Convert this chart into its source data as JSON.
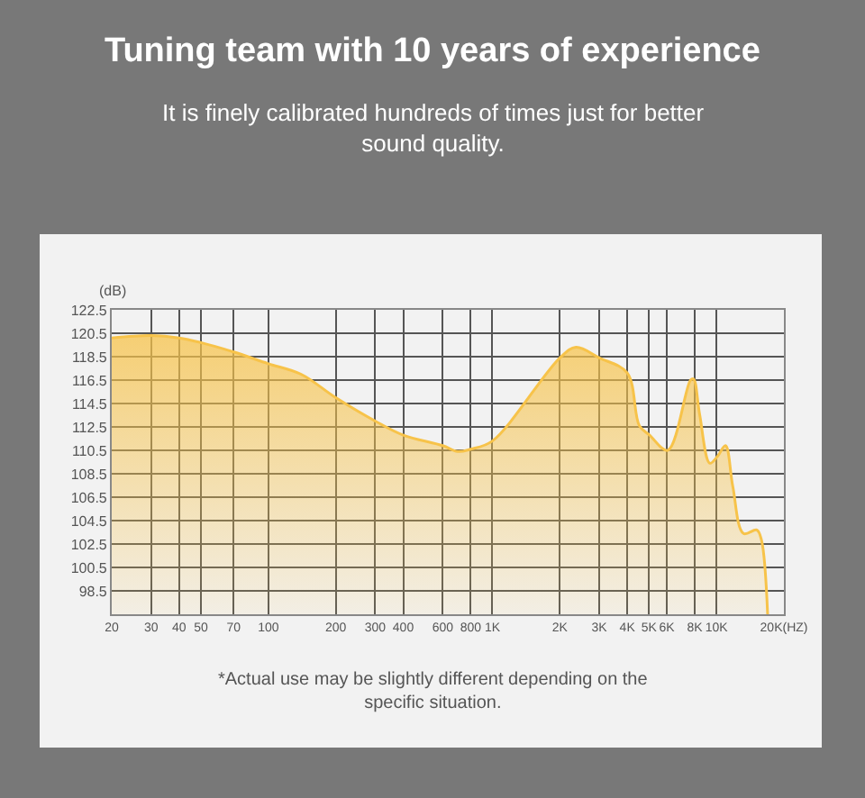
{
  "chart_data": {
    "type": "area",
    "title": "Tuning team with 10 years of experience",
    "subtitle": "It is finely calibrated hundreds of times just for better sound quality.",
    "ylabel": "(dB)",
    "annotations": [
      "*Actual use may be slightly different depending on the specific situation."
    ],
    "log": "x",
    "grid": true,
    "xlim": [
      20,
      20000
    ],
    "xticks": [
      20,
      30,
      40,
      50,
      70,
      100,
      200,
      {
        "value": 300,
        "label": "300"
      },
      400,
      600,
      800,
      {
        "value": 1000,
        "label": "1K"
      },
      {
        "value": 2000,
        "label": "2K"
      },
      {
        "value": 3000,
        "label": "3K"
      },
      {
        "value": 4000,
        "label": "4K"
      },
      {
        "value": 5000,
        "label": "5K"
      },
      {
        "value": 6000,
        "label": "6K"
      },
      {
        "value": 8000,
        "label": "8K"
      },
      {
        "value": 10000,
        "label": "10K"
      },
      {
        "value": 20000,
        "label": "20K(HZ)"
      }
    ],
    "ylim": [
      96.5,
      122.5
    ],
    "yticks": [
      98.5,
      100.5,
      102.5,
      104.5,
      106.5,
      108.5,
      110.5,
      112.5,
      114.5,
      116.5,
      118.5,
      120.5,
      122.5
    ],
    "series": [
      {
        "color": "#f7c34a",
        "x": [
          20,
          30,
          40,
          50,
          70,
          100,
          140,
          200,
          300,
          400,
          600,
          700,
          800,
          1000,
          2000,
          2360,
          3000,
          4000,
          4530,
          5030,
          6060,
          7660,
          7900,
          8410,
          9340,
          10120,
          10970,
          11830,
          13200,
          15140,
          15900,
          16920
        ],
        "values": [
          120.1,
          120.3,
          120.1,
          119.7,
          118.9,
          117.9,
          117.0,
          115.0,
          113.0,
          111.8,
          110.9,
          110.4,
          110.6,
          111.3,
          118.4,
          119.3,
          118.4,
          117.1,
          112.6,
          111.8,
          110.5,
          116.5,
          116.6,
          113.6,
          109.4,
          110.0,
          110.9,
          107.4,
          103.4,
          103.7,
          102.8,
          96.5
        ]
      }
    ]
  }
}
